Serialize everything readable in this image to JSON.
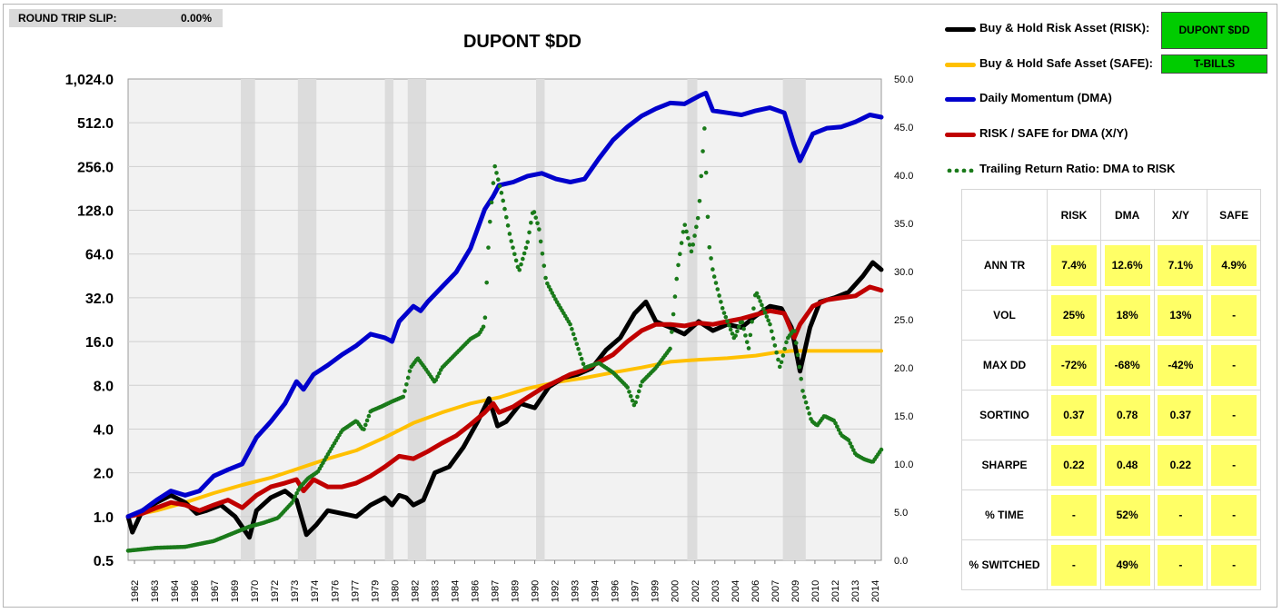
{
  "slip": {
    "label": "ROUND TRIP SLIP:",
    "value": "0.00%"
  },
  "legend": {
    "risk": "Buy & Hold Risk Asset (RISK):",
    "safe": "Buy & Hold Safe Asset (SAFE):",
    "dma": "Daily Momentum (DMA)",
    "xy": "RISK / SAFE for DMA (X/Y)",
    "ratio": "Trailing Return Ratio: DMA to RISK",
    "risk_value": "DUPONT $DD",
    "safe_value": "T-BILLS"
  },
  "colors": {
    "risk": "#000000",
    "safe": "#ffc000",
    "dma": "#0000cc",
    "xy": "#c00000",
    "ratio": "#1a7a1a",
    "shade": "#dcdcdc",
    "grid": "#d0d0d0",
    "plot_bg": "#f2f2f2",
    "highlight": "#ffff66",
    "green_box": "#00cc00"
  },
  "stats": {
    "columns": [
      "RISK",
      "DMA",
      "X/Y",
      "SAFE"
    ],
    "rows": [
      {
        "label": "ANN TR",
        "values": [
          "7.4%",
          "12.6%",
          "7.1%",
          "4.9%"
        ]
      },
      {
        "label": "VOL",
        "values": [
          "25%",
          "18%",
          "13%",
          "-"
        ]
      },
      {
        "label": "MAX DD",
        "values": [
          "-72%",
          "-68%",
          "-42%",
          "-"
        ]
      },
      {
        "label": "SORTINO",
        "values": [
          "0.37",
          "0.78",
          "0.37",
          "-"
        ]
      },
      {
        "label": "SHARPE",
        "values": [
          "0.22",
          "0.48",
          "0.22",
          "-"
        ]
      },
      {
        "label": "% TIME",
        "values": [
          "-",
          "52%",
          "-",
          "-"
        ]
      },
      {
        "label": "% SWITCHED",
        "values": [
          "-",
          "49%",
          "-",
          "-"
        ]
      }
    ]
  },
  "chart_data": {
    "type": "line",
    "title": "DUPONT $DD",
    "y_scale": "log2",
    "ylim": [
      0.5,
      1024
    ],
    "y_ticks": [
      "0.5",
      "1.0",
      "2.0",
      "4.0",
      "8.0",
      "16.0",
      "32.0",
      "64.0",
      "128.0",
      "256.0",
      "512.0",
      "1,024.0"
    ],
    "y2lim": [
      0,
      50
    ],
    "y2_ticks": [
      "0.0",
      "5.0",
      "10.0",
      "15.0",
      "20.0",
      "25.0",
      "30.0",
      "35.0",
      "40.0",
      "45.0",
      "50.0"
    ],
    "xlim": [
      1962,
      2014.8
    ],
    "x_ticks": [
      "1962",
      "1963",
      "1964",
      "1966",
      "1967",
      "1969",
      "1970",
      "1972",
      "1973",
      "1974",
      "1976",
      "1977",
      "1979",
      "1980",
      "1982",
      "1983",
      "1984",
      "1986",
      "1987",
      "1989",
      "1990",
      "1992",
      "1993",
      "1994",
      "1996",
      "1997",
      "1999",
      "2000",
      "2002",
      "2003",
      "2004",
      "2006",
      "2007",
      "2009",
      "2010",
      "2012",
      "2013",
      "2014"
    ],
    "recession_bands": [
      [
        1969.9,
        1970.9
      ],
      [
        1973.9,
        1975.2
      ],
      [
        1980.0,
        1980.6
      ],
      [
        1981.6,
        1982.9
      ],
      [
        1990.6,
        1991.2
      ],
      [
        2001.2,
        2001.9
      ],
      [
        2007.9,
        2009.5
      ]
    ],
    "series": [
      {
        "name": "Buy & Hold Risk Asset (RISK)",
        "key": "risk",
        "axis": "left",
        "x": [
          1962.0,
          1962.3,
          1963,
          1964,
          1965,
          1966,
          1966.8,
          1967.5,
          1968.5,
          1969.5,
          1970.5,
          1971,
          1972,
          1973,
          1973.8,
          1974.5,
          1975.2,
          1976,
          1977,
          1978,
          1979,
          1980,
          1980.5,
          1981,
          1981.5,
          1982,
          1982.7,
          1983.5,
          1984.5,
          1985.5,
          1986.5,
          1987.3,
          1987.9,
          1988.5,
          1989.5,
          1990.5,
          1991.5,
          1992.5,
          1993.5,
          1994.5,
          1995.5,
          1996.5,
          1997.5,
          1998.3,
          1999,
          2000,
          2001,
          2002,
          2003,
          2004,
          2005,
          2006,
          2007,
          2007.8,
          2008.5,
          2009.1,
          2009.8,
          2010.5,
          2011.5,
          2012.5,
          2013.5,
          2014.2,
          2014.8
        ],
        "values": [
          1.0,
          0.78,
          1.1,
          1.25,
          1.4,
          1.25,
          1.05,
          1.1,
          1.2,
          1.0,
          0.72,
          1.1,
          1.35,
          1.5,
          1.3,
          0.75,
          0.88,
          1.1,
          1.05,
          1.0,
          1.2,
          1.35,
          1.2,
          1.4,
          1.35,
          1.2,
          1.3,
          2.0,
          2.2,
          3.0,
          4.5,
          6.5,
          4.2,
          4.5,
          6.0,
          5.6,
          7.8,
          9.0,
          9.5,
          10.5,
          14.0,
          17.0,
          25.0,
          30.0,
          22.0,
          20.0,
          18.0,
          22.0,
          19.0,
          21.0,
          20.0,
          24.0,
          28.0,
          27.0,
          20.0,
          10.0,
          20.0,
          30.0,
          32.0,
          35.0,
          45.0,
          56.0,
          50.0
        ]
      },
      {
        "name": "Buy & Hold Safe Asset (SAFE)",
        "key": "safe",
        "axis": "left",
        "x": [
          1962,
          1964,
          1966,
          1968,
          1970,
          1972,
          1974,
          1976,
          1978,
          1980,
          1982,
          1984,
          1986,
          1988,
          1990,
          1992,
          1994,
          1996,
          1998,
          2000,
          2002,
          2004,
          2006,
          2007.5,
          2008.5,
          2010,
          2012,
          2014.8
        ],
        "values": [
          1.0,
          1.1,
          1.25,
          1.45,
          1.65,
          1.85,
          2.15,
          2.5,
          2.85,
          3.5,
          4.4,
          5.2,
          6.0,
          6.6,
          7.6,
          8.4,
          9.0,
          9.8,
          10.6,
          11.6,
          12.0,
          12.3,
          12.8,
          13.5,
          13.8,
          13.8,
          13.8,
          13.8
        ]
      },
      {
        "name": "Daily Momentum (DMA)",
        "key": "dma",
        "axis": "left",
        "x": [
          1962,
          1963,
          1964,
          1965,
          1966,
          1967,
          1968,
          1969,
          1970,
          1971,
          1972,
          1973,
          1973.8,
          1974.3,
          1975,
          1976,
          1977,
          1978,
          1979,
          1980,
          1980.5,
          1981,
          1982,
          1982.5,
          1983,
          1984,
          1985,
          1986,
          1987,
          1987.6,
          1988,
          1989,
          1990,
          1991,
          1992,
          1993,
          1994,
          1995,
          1996,
          1997,
          1998,
          1999,
          2000,
          2001,
          2002,
          2002.5,
          2003,
          2004,
          2005,
          2006,
          2007,
          2008,
          2008.7,
          2009.1,
          2010,
          2011,
          2012,
          2013,
          2014,
          2014.8
        ],
        "values": [
          1.0,
          1.1,
          1.3,
          1.5,
          1.4,
          1.5,
          1.9,
          2.1,
          2.3,
          3.5,
          4.5,
          6.0,
          8.5,
          7.5,
          9.5,
          11.0,
          13.0,
          15.0,
          18.0,
          17.0,
          16.0,
          22.0,
          28.0,
          26.0,
          30.0,
          38.0,
          48.0,
          70.0,
          130.0,
          160.0,
          190.0,
          200.0,
          220.0,
          230.0,
          210.0,
          200.0,
          210.0,
          290.0,
          390.0,
          480.0,
          570.0,
          640.0,
          700.0,
          690.0,
          780.0,
          820.0,
          620.0,
          600.0,
          580.0,
          620.0,
          650.0,
          600.0,
          360.0,
          280.0,
          430.0,
          470.0,
          480.0,
          520.0,
          580.0,
          560.0
        ]
      },
      {
        "name": "RISK / SAFE for DMA (X/Y)",
        "key": "xy",
        "axis": "left",
        "x": [
          1962,
          1963,
          1964,
          1965,
          1966,
          1967,
          1968,
          1969,
          1970,
          1971,
          1972,
          1973,
          1973.8,
          1974.3,
          1975,
          1976,
          1977,
          1978,
          1979,
          1980,
          1981,
          1982,
          1983,
          1984,
          1985,
          1986,
          1987,
          1987.6,
          1988,
          1989,
          1990,
          1991,
          1992,
          1993,
          1994,
          1995,
          1996,
          1997,
          1998,
          1999,
          2000,
          2001,
          2002,
          2003,
          2004,
          2005,
          2006,
          2007,
          2008,
          2008.7,
          2009.1,
          2010,
          2011,
          2012,
          2013,
          2014,
          2014.8
        ],
        "values": [
          1.0,
          1.05,
          1.15,
          1.25,
          1.2,
          1.1,
          1.2,
          1.3,
          1.15,
          1.4,
          1.6,
          1.7,
          1.8,
          1.5,
          1.8,
          1.6,
          1.6,
          1.7,
          1.9,
          2.2,
          2.6,
          2.5,
          2.8,
          3.2,
          3.6,
          4.3,
          5.2,
          6.0,
          5.2,
          5.7,
          6.6,
          7.6,
          8.5,
          9.5,
          10.2,
          11.5,
          13.0,
          16.0,
          19.0,
          21.0,
          21.0,
          20.5,
          21.5,
          21.0,
          22.0,
          23.0,
          24.5,
          26.0,
          25.0,
          17.0,
          21.0,
          28.0,
          31.0,
          32.0,
          33.0,
          38.0,
          36.0
        ]
      },
      {
        "name": "Trailing Return Ratio: DMA to RISK",
        "key": "ratio",
        "axis": "right",
        "x": [
          1962,
          1964,
          1966,
          1968,
          1969.5,
          1970.5,
          1971.5,
          1972.5,
          1973.5,
          1974,
          1974.6,
          1975.3,
          1976,
          1977,
          1978,
          1978.5,
          1979,
          1979.8,
          1980.5,
          1981.3,
          1981.8,
          1982.3,
          1982.8,
          1983.5,
          1984,
          1985,
          1986,
          1986.6,
          1987,
          1987.3,
          1987.7,
          1988.2,
          1988.8,
          1989.4,
          1990,
          1990.4,
          1990.8,
          1991.3,
          1992,
          1993,
          1994,
          1995,
          1996,
          1997,
          1997.5,
          1998,
          1999,
          2000,
          2000.5,
          2001,
          2001.5,
          2002,
          2002.4,
          2002.7,
          2003,
          2003.7,
          2004.5,
          2005,
          2005.5,
          2006,
          2007,
          2007.7,
          2008.2,
          2008.7,
          2009.3,
          2009.9,
          2010.3,
          2010.8,
          2011.5,
          2012,
          2012.5,
          2013,
          2013.6,
          2014.2,
          2014.8
        ],
        "values": [
          1.0,
          1.3,
          1.4,
          2.0,
          2.9,
          3.5,
          3.9,
          4.4,
          6.0,
          7.5,
          8.5,
          9.2,
          11.0,
          13.5,
          14.5,
          13.5,
          15.5,
          16.0,
          16.5,
          17.0,
          20.0,
          21.0,
          20.0,
          18.5,
          20.0,
          21.5,
          23.0,
          23.5,
          24.5,
          34.0,
          41.0,
          38.0,
          33.5,
          30.0,
          33.0,
          36.5,
          34.5,
          29.0,
          27.0,
          24.5,
          20.0,
          20.5,
          19.5,
          18.0,
          16.0,
          18.5,
          20.0,
          22.0,
          30.0,
          35.0,
          32.0,
          36.0,
          45.0,
          33.0,
          30.0,
          26.0,
          23.0,
          25.0,
          22.0,
          28.0,
          24.5,
          20.0,
          23.0,
          24.0,
          17.5,
          14.5,
          14.0,
          15.0,
          14.5,
          13.0,
          12.5,
          11.0,
          10.5,
          10.2,
          11.5
        ]
      }
    ]
  }
}
